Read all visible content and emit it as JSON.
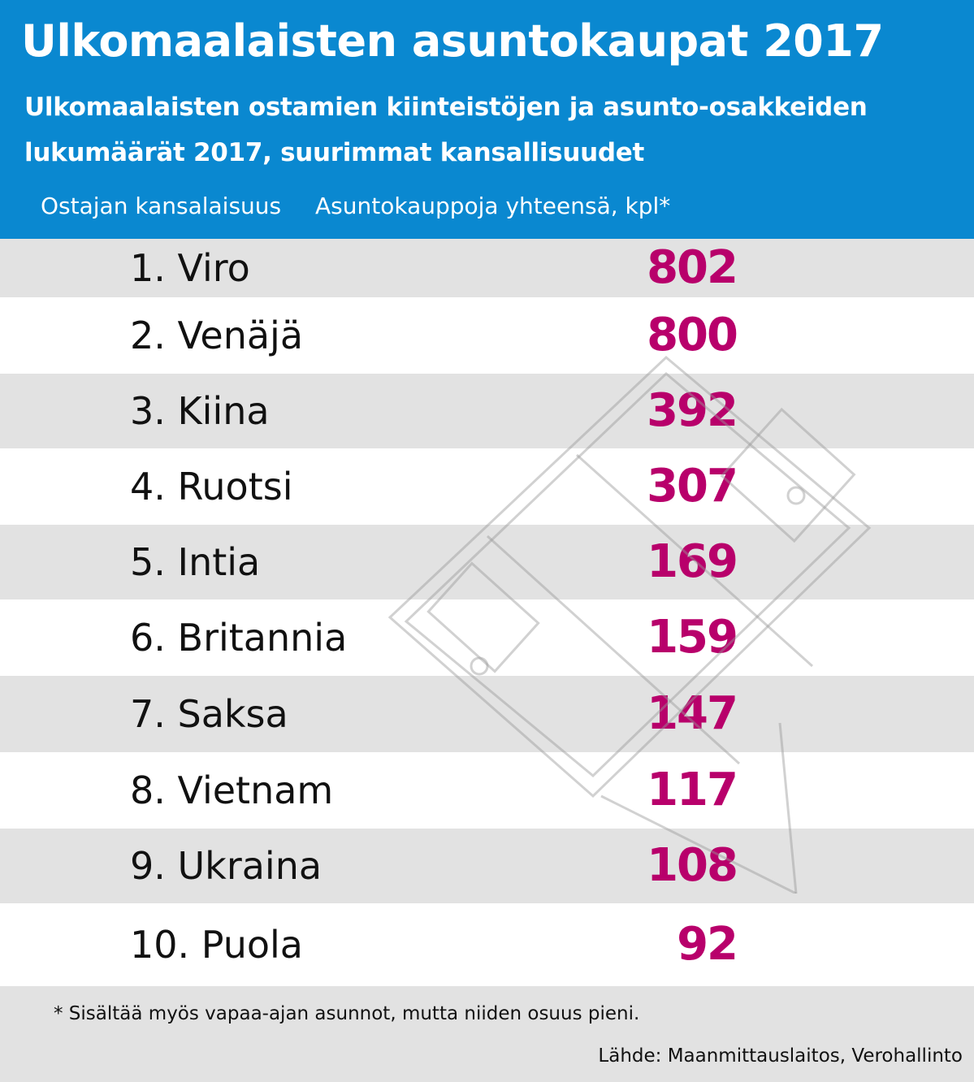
{
  "header": {
    "title": "Ulkomaalaisten asuntokaupat 2017",
    "subtitle": "Ulkomaalaisten ostamien kiinteistöjen ja asunto-osakkeiden lukumäärät 2017, suurimmat kansallisuudet",
    "col_left": "Ostajan kansalaisuus",
    "col_right": "Asuntokauppoja yhteensä, kpl*"
  },
  "colors": {
    "header_bg": "#0a88d0",
    "value_color": "#b8006b",
    "row_alt": "#e2e2e2"
  },
  "chart_data": {
    "type": "table",
    "title": "Ulkomaalaisten asuntokaupat 2017",
    "columns": [
      "Ostajan kansalaisuus",
      "Asuntokauppoja yhteensä, kpl*"
    ],
    "rows": [
      {
        "rank": "1.",
        "country": "Viro",
        "label": "1.  Viro",
        "value": 802
      },
      {
        "rank": "2.",
        "country": "Venäjä",
        "label": "2.  Venäjä",
        "value": 800
      },
      {
        "rank": "3.",
        "country": "Kiina",
        "label": "3.  Kiina",
        "value": 392
      },
      {
        "rank": "4.",
        "country": "Ruotsi",
        "label": "4.  Ruotsi",
        "value": 307
      },
      {
        "rank": "5.",
        "country": "Intia",
        "label": "5.  Intia",
        "value": 169
      },
      {
        "rank": "6.",
        "country": "Britannia",
        "label": "6.  Britannia",
        "value": 159
      },
      {
        "rank": "7.",
        "country": "Saksa",
        "label": "7.  Saksa",
        "value": 147
      },
      {
        "rank": "8.",
        "country": "Vietnam",
        "label": "8.  Vietnam",
        "value": 117
      },
      {
        "rank": "9.",
        "country": "Ukraina",
        "label": "9.  Ukraina",
        "value": 108
      },
      {
        "rank": "10.",
        "country": "Puola",
        "label": "10. Puola",
        "value": 92
      }
    ]
  },
  "footer": {
    "footnote": "* Sisältää myös vapaa-ajan asunnot, mutta niiden osuus pieni.",
    "source": "Lähde: Maanmittauslaitos, Verohallinto"
  }
}
